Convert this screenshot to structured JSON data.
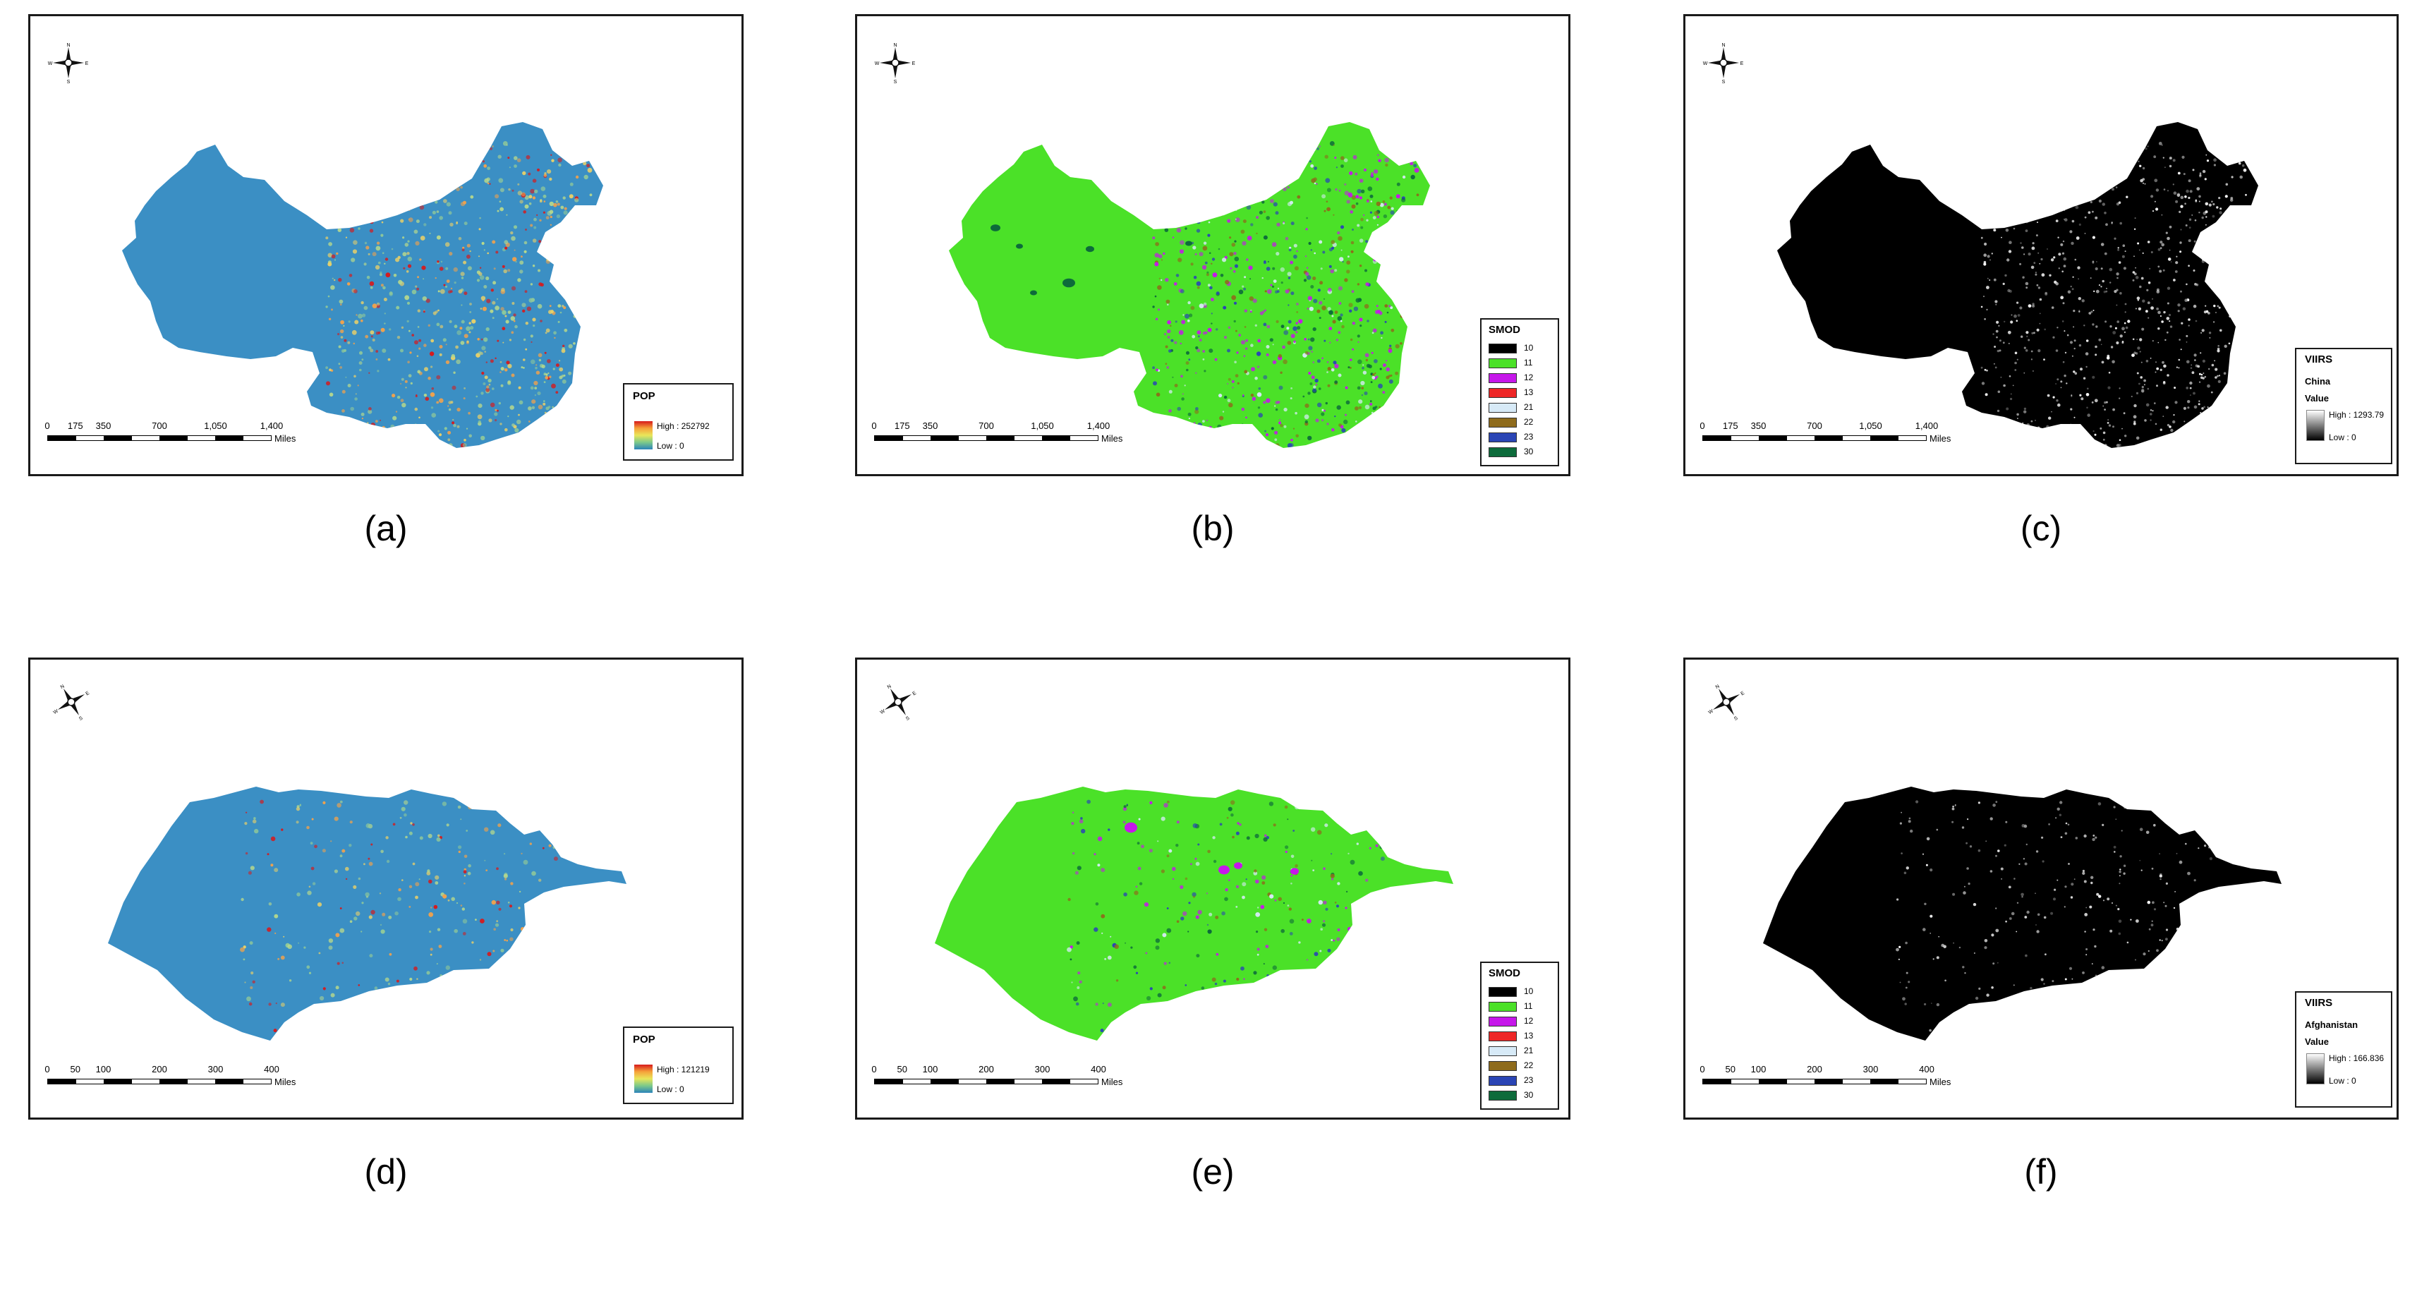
{
  "panels": [
    {
      "caption": "(a)",
      "region": "china",
      "map_style": "pop",
      "legend": {
        "kind": "pop",
        "title": "POP",
        "high": "High : 252792",
        "low": "Low : 0"
      },
      "scale": {
        "ticks": [
          "0",
          "175",
          "350",
          "700",
          "1,050",
          "1,400"
        ],
        "unit": "Miles"
      }
    },
    {
      "caption": "(b)",
      "region": "china",
      "map_style": "smod",
      "legend": {
        "kind": "smod",
        "title": "SMOD",
        "classes": [
          {
            "label": "10",
            "color": "#000000"
          },
          {
            "label": "11",
            "color": "#4be128"
          },
          {
            "label": "12",
            "color": "#c617ea"
          },
          {
            "label": "13",
            "color": "#ee2626"
          },
          {
            "label": "21",
            "color": "#d7eaf7"
          },
          {
            "label": "22",
            "color": "#8e6b1c"
          },
          {
            "label": "23",
            "color": "#2a45b5"
          },
          {
            "label": "30",
            "color": "#0d6b3b"
          }
        ]
      },
      "scale": {
        "ticks": [
          "0",
          "175",
          "350",
          "700",
          "1,050",
          "1,400"
        ],
        "unit": "Miles"
      }
    },
    {
      "caption": "(c)",
      "region": "china",
      "map_style": "viirs",
      "legend": {
        "kind": "viirs",
        "title": "VIIRS",
        "country": "China",
        "value_label": "Value",
        "high": "High : 1293.79",
        "low": "Low : 0"
      },
      "scale": {
        "ticks": [
          "0",
          "175",
          "350",
          "700",
          "1,050",
          "1,400"
        ],
        "unit": "Miles"
      }
    },
    {
      "caption": "(d)",
      "region": "afghanistan",
      "map_style": "pop",
      "legend": {
        "kind": "pop",
        "title": "POP",
        "high": "High : 121219",
        "low": "Low : 0"
      },
      "scale": {
        "ticks": [
          "0",
          "50",
          "100",
          "200",
          "300",
          "400"
        ],
        "unit": "Miles"
      }
    },
    {
      "caption": "(e)",
      "region": "afghanistan",
      "map_style": "smod",
      "legend": {
        "kind": "smod",
        "title": "SMOD",
        "classes": [
          {
            "label": "10",
            "color": "#000000"
          },
          {
            "label": "11",
            "color": "#4be128"
          },
          {
            "label": "12",
            "color": "#c617ea"
          },
          {
            "label": "13",
            "color": "#ee2626"
          },
          {
            "label": "21",
            "color": "#d7eaf7"
          },
          {
            "label": "22",
            "color": "#8e6b1c"
          },
          {
            "label": "23",
            "color": "#2a45b5"
          },
          {
            "label": "30",
            "color": "#0d6b3b"
          }
        ]
      },
      "scale": {
        "ticks": [
          "0",
          "50",
          "100",
          "200",
          "300",
          "400"
        ],
        "unit": "Miles"
      }
    },
    {
      "caption": "(f)",
      "region": "afghanistan",
      "map_style": "viirs",
      "legend": {
        "kind": "viirs",
        "title": "VIIRS",
        "country": "Afghanistan",
        "value_label": "Value",
        "high": "High : 166.836",
        "low": "Low : 0"
      },
      "scale": {
        "ticks": [
          "0",
          "50",
          "100",
          "200",
          "300",
          "400"
        ],
        "unit": "Miles"
      }
    }
  ],
  "colors": {
    "pop_base": "#3b8fc4",
    "smod_base": "#4be128",
    "viirs_base": "#000000"
  }
}
